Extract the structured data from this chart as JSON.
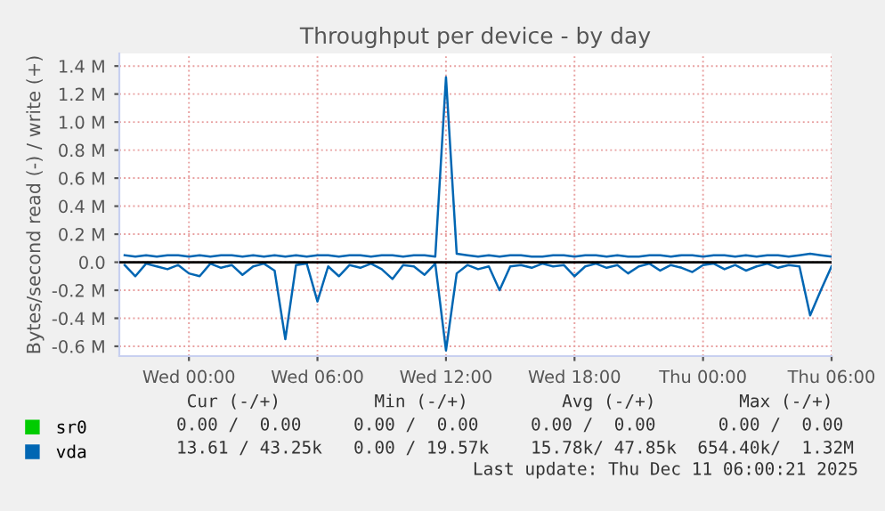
{
  "chart_data": {
    "type": "line",
    "title": "Throughput per device - by day",
    "ylabel": "Bytes/second read (-) / write (+)",
    "x": [
      "2025-12-09T21:00",
      "2025-12-09T21:30",
      "2025-12-09T22:00",
      "2025-12-09T22:30",
      "2025-12-09T23:00",
      "2025-12-09T23:30",
      "2025-12-10T00:00",
      "2025-12-10T00:30",
      "2025-12-10T01:00",
      "2025-12-10T01:30",
      "2025-12-10T02:00",
      "2025-12-10T02:30",
      "2025-12-10T03:00",
      "2025-12-10T03:30",
      "2025-12-10T04:00",
      "2025-12-10T04:30",
      "2025-12-10T05:00",
      "2025-12-10T05:30",
      "2025-12-10T06:00",
      "2025-12-10T06:30",
      "2025-12-10T07:00",
      "2025-12-10T07:30",
      "2025-12-10T08:00",
      "2025-12-10T08:30",
      "2025-12-10T09:00",
      "2025-12-10T09:30",
      "2025-12-10T10:00",
      "2025-12-10T10:30",
      "2025-12-10T11:00",
      "2025-12-10T11:30",
      "2025-12-10T12:00",
      "2025-12-10T12:30",
      "2025-12-10T13:00",
      "2025-12-10T13:30",
      "2025-12-10T14:00",
      "2025-12-10T14:30",
      "2025-12-10T15:00",
      "2025-12-10T15:30",
      "2025-12-10T16:00",
      "2025-12-10T16:30",
      "2025-12-10T17:00",
      "2025-12-10T17:30",
      "2025-12-10T18:00",
      "2025-12-10T18:30",
      "2025-12-10T19:00",
      "2025-12-10T19:30",
      "2025-12-10T20:00",
      "2025-12-10T20:30",
      "2025-12-10T21:00",
      "2025-12-10T21:30",
      "2025-12-10T22:00",
      "2025-12-10T22:30",
      "2025-12-10T23:00",
      "2025-12-10T23:30",
      "2025-12-11T00:00",
      "2025-12-11T00:30",
      "2025-12-11T01:00",
      "2025-12-11T01:30",
      "2025-12-11T02:00",
      "2025-12-11T02:30",
      "2025-12-11T03:00",
      "2025-12-11T03:30",
      "2025-12-11T04:00",
      "2025-12-11T04:30",
      "2025-12-11T05:00",
      "2025-12-11T05:30",
      "2025-12-11T06:00"
    ],
    "xlim": [
      "2025-12-09T20:45",
      "2025-12-11T06:00"
    ],
    "xticks": [
      {
        "value": "2025-12-10T00:00",
        "label": "Wed 00:00"
      },
      {
        "value": "2025-12-10T06:00",
        "label": "Wed 06:00"
      },
      {
        "value": "2025-12-10T12:00",
        "label": "Wed 12:00"
      },
      {
        "value": "2025-12-10T18:00",
        "label": "Wed 18:00"
      },
      {
        "value": "2025-12-11T00:00",
        "label": "Thu 00:00"
      },
      {
        "value": "2025-12-11T06:00",
        "label": "Thu 06:00"
      }
    ],
    "ylim": [
      -0.67,
      1.49
    ],
    "yticks": [
      {
        "value": -0.6,
        "label": "-0.6 M"
      },
      {
        "value": -0.4,
        "label": "-0.4 M"
      },
      {
        "value": -0.2,
        "label": "-0.2 M"
      },
      {
        "value": 0,
        "label": "0.0"
      },
      {
        "value": 0.2,
        "label": "0.2 M"
      },
      {
        "value": 0.4,
        "label": "0.4 M"
      },
      {
        "value": 0.6,
        "label": "0.6 M"
      },
      {
        "value": 0.8,
        "label": "0.8 M"
      },
      {
        "value": 1.0,
        "label": "1.0 M"
      },
      {
        "value": 1.2,
        "label": "1.2 M"
      },
      {
        "value": 1.4,
        "label": "1.4 M"
      }
    ],
    "grid": true,
    "legend": "bottom",
    "line_style": "solid",
    "marker": "none",
    "ref_lines": [
      {
        "axis": "y",
        "value": 0,
        "label": null,
        "color": "#000000"
      }
    ],
    "series": [
      {
        "name": "sr0",
        "color": "#00cc00",
        "values": [
          null,
          null,
          null,
          null,
          null,
          null,
          null,
          null,
          null,
          null,
          null,
          null,
          null,
          null,
          null,
          null,
          null,
          null,
          null,
          null,
          null,
          null,
          null,
          null,
          null,
          null,
          null,
          null,
          null,
          null,
          null,
          null,
          null,
          null,
          null,
          null,
          null,
          null,
          null,
          null,
          null,
          null,
          null,
          null,
          null,
          null,
          null,
          null,
          null,
          null,
          null,
          null,
          null,
          null,
          null,
          null,
          null,
          null,
          null,
          null,
          null,
          null,
          null,
          null,
          null,
          null,
          null
        ]
      },
      {
        "name": "vda",
        "color": "#0066b3",
        "values": [
          0.05,
          0.04,
          0.05,
          0.04,
          0.05,
          0.05,
          0.04,
          0.05,
          0.04,
          0.05,
          0.05,
          0.04,
          0.05,
          0.04,
          0.05,
          0.04,
          0.05,
          0.04,
          0.05,
          0.05,
          0.04,
          0.05,
          0.05,
          0.04,
          0.05,
          0.05,
          0.04,
          0.05,
          0.05,
          0.04,
          1.32,
          0.06,
          0.05,
          0.04,
          0.05,
          0.04,
          0.05,
          0.05,
          0.04,
          0.04,
          0.05,
          0.05,
          0.04,
          0.05,
          0.05,
          0.04,
          0.05,
          0.04,
          0.04,
          0.05,
          0.05,
          0.04,
          0.05,
          0.05,
          0.04,
          0.05,
          0.05,
          0.04,
          0.05,
          0.04,
          0.05,
          0.05,
          0.04,
          0.05,
          0.06,
          0.05,
          0.04
        ]
      },
      {
        "color": "#0066b3",
        "values": [
          -0.02,
          -0.1,
          -0.01,
          -0.03,
          -0.05,
          -0.02,
          -0.08,
          -0.1,
          -0.01,
          -0.04,
          -0.02,
          -0.09,
          -0.03,
          -0.01,
          -0.06,
          -0.55,
          -0.02,
          -0.01,
          -0.28,
          -0.03,
          -0.1,
          -0.02,
          -0.04,
          -0.01,
          -0.05,
          -0.12,
          -0.02,
          -0.03,
          -0.09,
          -0.01,
          -0.63,
          -0.08,
          -0.02,
          -0.05,
          -0.03,
          -0.2,
          -0.03,
          -0.02,
          -0.04,
          -0.01,
          -0.03,
          -0.02,
          -0.1,
          -0.03,
          -0.01,
          -0.04,
          -0.02,
          -0.08,
          -0.03,
          -0.01,
          -0.06,
          -0.02,
          -0.04,
          -0.07,
          -0.02,
          -0.01,
          -0.05,
          -0.02,
          -0.06,
          -0.03,
          -0.01,
          -0.04,
          -0.02,
          -0.03,
          -0.38,
          -0.2,
          -0.03
        ]
      }
    ],
    "annotations": [
      " Cur (-/+)         Min (-/+)         Avg (-/+)        Max (-/+)",
      "0.00 /  0.00     0.00 /  0.00     0.00 /  0.00      0.00 /  0.00",
      "13.61 / 43.25k   0.00 / 19.57k    15.78k/ 47.85k  654.40k/  1.32M",
      "Last update: Thu Dec 11 06:00:21 2025"
    ]
  }
}
